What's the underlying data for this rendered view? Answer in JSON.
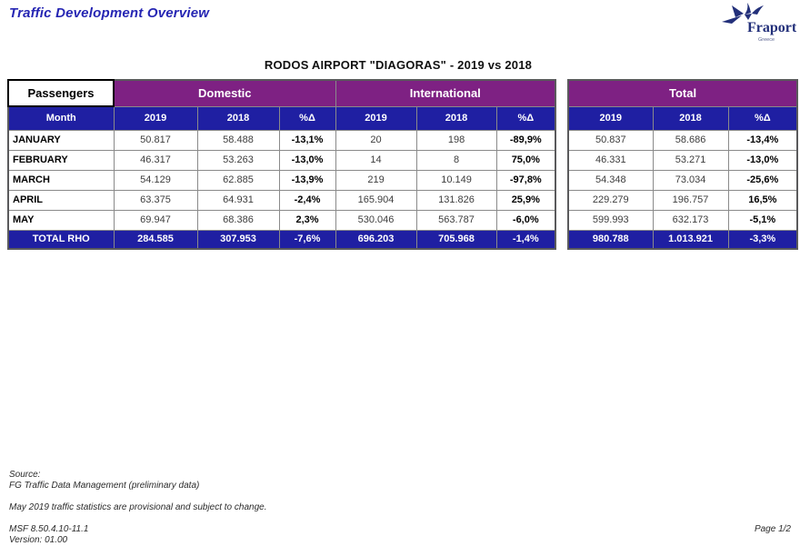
{
  "page": {
    "title": "Traffic Development Overview",
    "page_number": "Page 1/2"
  },
  "logo": {
    "brand": "Fraport",
    "region": "Greece",
    "icon": "fraport-star-icon",
    "navy": "#23307a"
  },
  "report": {
    "table_title": "RODOS AIRPORT \"DIAGORAS\" - 2019 vs 2018"
  },
  "colors": {
    "group_header_purple": "#7e2183",
    "sub_header_blue": "#1f1fa2",
    "title_blue": "#2626b3"
  },
  "table": {
    "corner_label": "Passengers",
    "month_header": "Month",
    "groups": [
      {
        "label": "Domestic"
      },
      {
        "label": "International"
      },
      {
        "label": "Total"
      }
    ],
    "sub_headers": [
      "2019",
      "2018",
      "%Δ"
    ],
    "rows": [
      {
        "month": "JANUARY",
        "domestic": [
          "50.817",
          "58.488",
          "-13,1%"
        ],
        "international": [
          "20",
          "198",
          "-89,9%"
        ],
        "total": [
          "50.837",
          "58.686",
          "-13,4%"
        ]
      },
      {
        "month": "FEBRUARY",
        "domestic": [
          "46.317",
          "53.263",
          "-13,0%"
        ],
        "international": [
          "14",
          "8",
          "75,0%"
        ],
        "total": [
          "46.331",
          "53.271",
          "-13,0%"
        ]
      },
      {
        "month": "MARCH",
        "domestic": [
          "54.129",
          "62.885",
          "-13,9%"
        ],
        "international": [
          "219",
          "10.149",
          "-97,8%"
        ],
        "total": [
          "54.348",
          "73.034",
          "-25,6%"
        ]
      },
      {
        "month": "APRIL",
        "domestic": [
          "63.375",
          "64.931",
          "-2,4%"
        ],
        "international": [
          "165.904",
          "131.826",
          "25,9%"
        ],
        "total": [
          "229.279",
          "196.757",
          "16,5%"
        ]
      },
      {
        "month": "MAY",
        "domestic": [
          "69.947",
          "68.386",
          "2,3%"
        ],
        "international": [
          "530.046",
          "563.787",
          "-6,0%"
        ],
        "total": [
          "599.993",
          "632.173",
          "-5,1%"
        ]
      }
    ],
    "total_row": {
      "month": "TOTAL RHO",
      "domestic": [
        "284.585",
        "307.953",
        "-7,6%"
      ],
      "international": [
        "696.203",
        "705.968",
        "-1,4%"
      ],
      "total": [
        "980.788",
        "1.013.921",
        "-3,3%"
      ]
    }
  },
  "footer": {
    "source_label": "Source:",
    "source_value": "FG Traffic Data Management (preliminary data)",
    "note": "May 2019 traffic statistics are provisional and subject to change.",
    "msf": "MSF 8.50.4.10-11.1",
    "version": "Version: 01.00"
  }
}
